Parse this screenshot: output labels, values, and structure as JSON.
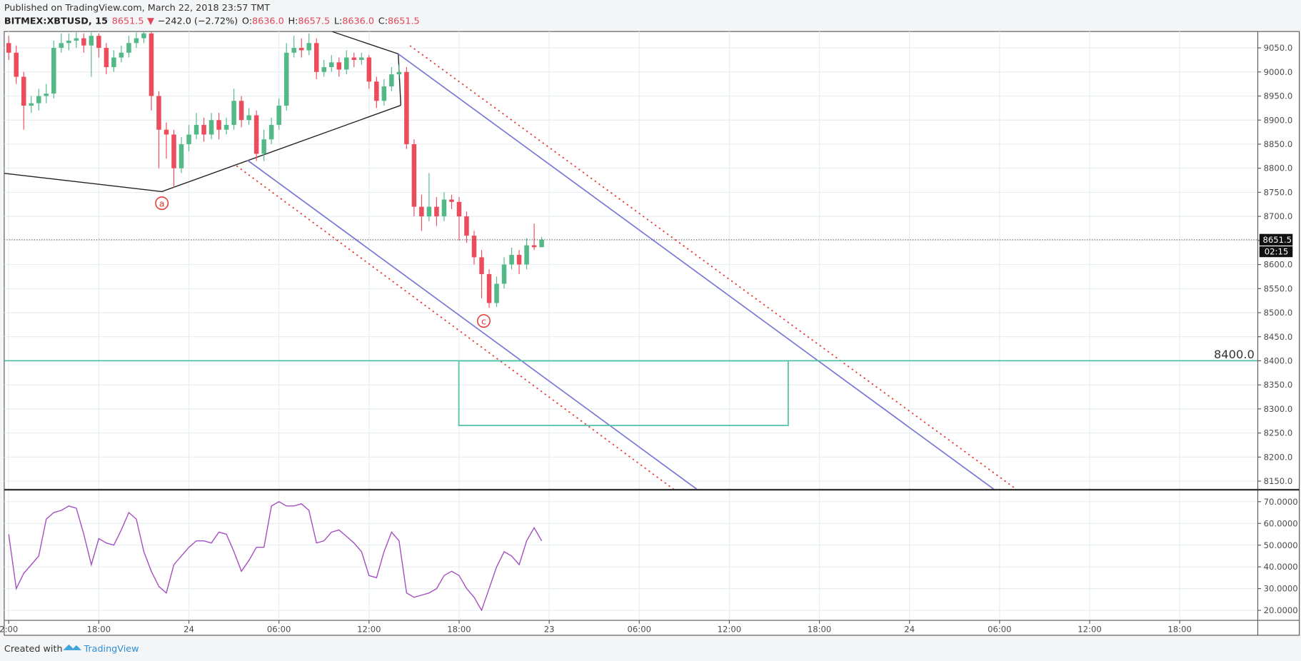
{
  "header": {
    "published": "Published on TradingView.com, March 22, 2018 23:57 TMT"
  },
  "legend": {
    "symbol": "BITMEX:XBTUSD, 15",
    "last": "8651.5",
    "arrow": "▼",
    "change": "−242.0 (−2.72%)",
    "ohlc": [
      {
        "key": "O:",
        "value": "8636.0"
      },
      {
        "key": "H:",
        "value": "8657.5"
      },
      {
        "key": "L:",
        "value": "8636.0"
      },
      {
        "key": "C:",
        "value": "8651.5"
      }
    ]
  },
  "chart_data": {
    "type": "candlestick",
    "x": [
      12,
      12.5,
      13,
      13.5,
      14,
      14.5,
      15,
      15.5,
      16,
      16.5,
      17,
      17.5,
      18,
      18.5,
      19,
      19.5,
      20,
      20.5,
      21,
      21.5,
      22,
      22.5,
      23,
      23.5,
      24,
      24.5,
      25,
      25.5,
      26,
      26.5,
      27,
      27.5,
      28,
      28.5,
      29,
      29.5,
      30,
      30.5,
      31,
      31.5,
      32,
      32.5,
      33,
      33.5,
      34,
      34.5,
      35,
      35.5,
      36,
      36.5,
      37,
      37.5,
      38,
      38.5,
      39,
      39.5,
      40,
      40.5,
      41,
      41.5,
      42,
      42.5,
      43,
      43.5,
      44,
      44.5,
      45,
      45.5,
      46,
      46.5,
      47,
      47.5
    ],
    "open": [
      9060,
      9040,
      8990,
      8930,
      8935,
      8950,
      8955,
      9050,
      9060,
      9065,
      9070,
      9055,
      9075,
      9050,
      9010,
      9030,
      9040,
      9060,
      9070,
      9080,
      8950,
      8880,
      8870,
      8800,
      8850,
      8870,
      8890,
      8870,
      8900,
      8880,
      8890,
      8940,
      8900,
      8910,
      8830,
      8860,
      8890,
      8930,
      9040,
      9050,
      9045,
      9060,
      9000,
      9010,
      9020,
      9005,
      9030,
      9025,
      9030,
      8980,
      8940,
      8970,
      8995,
      9000,
      8850,
      8720,
      8700,
      8720,
      8700,
      8735,
      8730,
      8700,
      8660,
      8615,
      8580,
      8520,
      8560,
      8600,
      8620,
      8600,
      8640,
      8636
    ],
    "high": [
      9075,
      9055,
      9000,
      8950,
      8965,
      8975,
      9065,
      9080,
      9080,
      9082,
      9080,
      9082,
      9080,
      9060,
      9045,
      9055,
      9075,
      9082,
      9084,
      9084,
      8960,
      8895,
      8880,
      8865,
      8890,
      8915,
      8905,
      8915,
      8915,
      8905,
      8965,
      8950,
      8925,
      8920,
      8880,
      8905,
      8945,
      9060,
      9075,
      9070,
      9080,
      9070,
      9025,
      9035,
      9030,
      9045,
      9040,
      9040,
      9035,
      8990,
      8985,
      9010,
      9015,
      9010,
      8860,
      8745,
      8790,
      8740,
      8750,
      8745,
      8740,
      8710,
      8670,
      8630,
      8590,
      8575,
      8615,
      8635,
      8630,
      8655,
      8685,
      8657.5
    ],
    "low": [
      9025,
      8975,
      8880,
      8915,
      8920,
      8935,
      8945,
      9040,
      9045,
      9050,
      9040,
      8990,
      9030,
      8995,
      9000,
      9020,
      9030,
      9050,
      9060,
      8920,
      8800,
      8820,
      8760,
      8790,
      8835,
      8860,
      8855,
      8860,
      8860,
      8870,
      8880,
      8885,
      8890,
      8815,
      8815,
      8850,
      8880,
      8920,
      9030,
      9030,
      9035,
      8985,
      8990,
      9000,
      8990,
      8995,
      9010,
      9015,
      8965,
      8925,
      8930,
      8960,
      8985,
      8840,
      8700,
      8670,
      8690,
      8680,
      8690,
      8715,
      8650,
      8645,
      8600,
      8530,
      8510,
      8512,
      8550,
      8590,
      8580,
      8590,
      8630,
      8636
    ],
    "close": [
      9040,
      8990,
      8930,
      8935,
      8950,
      8955,
      9050,
      9060,
      9065,
      9070,
      9055,
      9075,
      9050,
      9010,
      9030,
      9040,
      9060,
      9070,
      9080,
      8950,
      8880,
      8870,
      8800,
      8850,
      8870,
      8890,
      8870,
      8900,
      8880,
      8890,
      8940,
      8900,
      8910,
      8830,
      8860,
      8890,
      8930,
      9040,
      9050,
      9045,
      9060,
      9000,
      9010,
      9020,
      9005,
      9030,
      9025,
      9030,
      8980,
      8940,
      8970,
      8995,
      9000,
      8850,
      8720,
      8700,
      8720,
      8700,
      8735,
      8730,
      8700,
      8660,
      8615,
      8580,
      8520,
      8560,
      8600,
      8620,
      8600,
      8640,
      8636,
      8651.5
    ],
    "up_color": "#53b987",
    "down_color": "#eb4d5c",
    "xlim": [
      11.7,
      95.2
    ],
    "xticks": [
      {
        "value": 12,
        "label": "2:00"
      },
      {
        "value": 18,
        "label": "18:00"
      },
      24,
      {
        "value": 30,
        "label": "06:00"
      },
      {
        "value": 36,
        "label": "12:00"
      },
      {
        "value": 42,
        "label": "18:00"
      },
      {
        "value": 48,
        "label": "23"
      },
      {
        "value": 54,
        "label": "06:00"
      },
      {
        "value": 60,
        "label": "12:00"
      },
      {
        "value": 66,
        "label": "18:00"
      },
      {
        "value": 72,
        "label": "24"
      },
      {
        "value": 78,
        "label": "06:00"
      },
      {
        "value": 84,
        "label": "12:00"
      },
      {
        "value": 90,
        "label": "18:00"
      }
    ],
    "ylim": [
      8133,
      9084
    ],
    "yticks": [
      {
        "value": 8150,
        "label": "8150.0"
      },
      {
        "value": 8200,
        "label": "8200.0"
      },
      {
        "value": 8250,
        "label": "8250.0"
      },
      {
        "value": 8300,
        "label": "8300.0"
      },
      {
        "value": 8350,
        "label": "8350.0"
      },
      {
        "value": 8400,
        "label": "8400.0"
      },
      {
        "value": 8450,
        "label": "8450.0"
      },
      {
        "value": 8500,
        "label": "8500.0"
      },
      {
        "value": 8550,
        "label": "8550.0"
      },
      {
        "value": 8600,
        "label": "8600.0"
      },
      {
        "value": 8650,
        "label": "8650.0"
      },
      {
        "value": 8700,
        "label": "8700.0"
      },
      {
        "value": 8750,
        "label": "8750.0"
      },
      {
        "value": 8800,
        "label": "8800.0"
      },
      {
        "value": 8850,
        "label": "8850.0"
      },
      {
        "value": 8900,
        "label": "8900.0"
      },
      {
        "value": 8950,
        "label": "8950.0"
      },
      {
        "value": 9000,
        "label": "9000.0"
      },
      {
        "value": 9050,
        "label": "9050.0"
      }
    ],
    "grid": true,
    "last_price": 8651.5,
    "countdown": "02:15",
    "level": {
      "value": 8400,
      "label": "8400.0",
      "color": "#4fc1a6"
    },
    "annotations": [
      "a",
      "c"
    ],
    "rsi": {
      "values": [
        55,
        30,
        37,
        41,
        45,
        62,
        65,
        66,
        68,
        67,
        55,
        41,
        53,
        51,
        50,
        57,
        65,
        62,
        47,
        38,
        31,
        28,
        41,
        45,
        49,
        52,
        52,
        51,
        56,
        55,
        47,
        38,
        43,
        49,
        49,
        68,
        70,
        68,
        68,
        69,
        66,
        51,
        52,
        56,
        57,
        54,
        51,
        47,
        36,
        35,
        47,
        56,
        52,
        28,
        26,
        27,
        28,
        30,
        36,
        38,
        36,
        30,
        26,
        20,
        30,
        40,
        47,
        45,
        41,
        52,
        58,
        52
      ],
      "color": "#a44fc0",
      "ylim": [
        15.4,
        75.3
      ],
      "yticks": [
        {
          "value": 20,
          "label": "20.0000"
        },
        {
          "value": 30,
          "label": "30.0000"
        },
        {
          "value": 40,
          "label": "40.0000"
        },
        {
          "value": 50,
          "label": "50.0000"
        },
        {
          "value": 60,
          "label": "60.0000"
        },
        {
          "value": 70,
          "label": "70.0000"
        }
      ]
    }
  },
  "footer": {
    "created": "Created with",
    "brand": "TradingView"
  }
}
